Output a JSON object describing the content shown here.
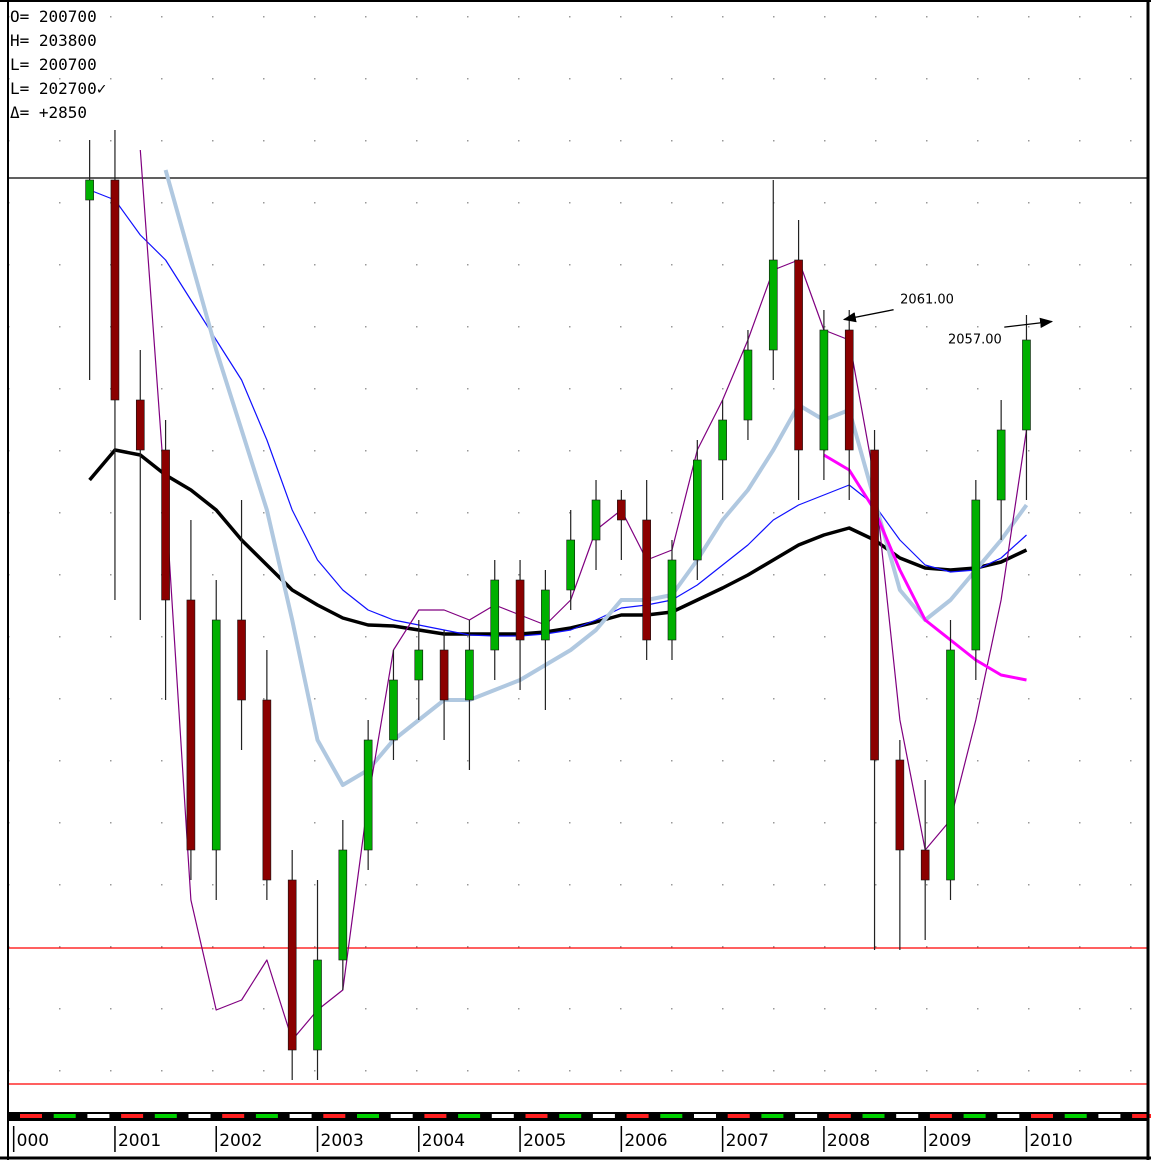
{
  "chart_data": {
    "type": "candlestick",
    "readout": [
      "O= 200700",
      "H= 203800",
      "L= 200700",
      "L= 202700✓",
      "Δ=   +2850"
    ],
    "xlim": [
      1999.944,
      2011.2
    ],
    "ylim": [
      480,
      2690
    ],
    "xticks": [
      {
        "value": 2000,
        "label": "000"
      },
      2001,
      2002,
      2003,
      2004,
      2005,
      2006,
      2007,
      2008,
      2009,
      2010
    ],
    "x": [
      2000.75,
      2001,
      2001.25,
      2001.5,
      2001.75,
      2002,
      2002.25,
      2002.5,
      2002.75,
      2003,
      2003.25,
      2003.5,
      2003.75,
      2004,
      2004.25,
      2004.5,
      2004.75,
      2005,
      2005.25,
      2005.5,
      2005.75,
      2006,
      2006.25,
      2006.5,
      2006.75,
      2007,
      2007.25,
      2007.5,
      2007.75,
      2008,
      2008.25,
      2008.5,
      2008.75,
      2009,
      2009.25,
      2009.5,
      2009.75,
      2010
    ],
    "open": [
      2300,
      2340,
      1900,
      1800,
      1500,
      1000,
      1460,
      1300,
      940,
      600,
      780,
      1000,
      1220,
      1340,
      1400,
      1300,
      1400,
      1540,
      1420,
      1520,
      1620,
      1700,
      1660,
      1420,
      1580,
      1780,
      1860,
      2000,
      2180,
      1800,
      2040,
      1800,
      1180,
      1000,
      940,
      1400,
      1700,
      1840
    ],
    "high": [
      2420,
      2440,
      2000,
      1860,
      1660,
      1540,
      1700,
      1400,
      1000,
      940,
      1060,
      1260,
      1400,
      1460,
      1440,
      1460,
      1580,
      1580,
      1560,
      1680,
      1740,
      1720,
      1740,
      1620,
      1820,
      1900,
      2040,
      2340,
      2260,
      2080,
      2080,
      1840,
      1220,
      1140,
      1460,
      1740,
      1900,
      2070
    ],
    "low": [
      1940,
      1500,
      1460,
      1300,
      940,
      900,
      1200,
      900,
      540,
      540,
      720,
      960,
      1180,
      1260,
      1220,
      1160,
      1340,
      1320,
      1280,
      1480,
      1560,
      1580,
      1380,
      1380,
      1540,
      1700,
      1820,
      1940,
      1700,
      1740,
      1700,
      800,
      800,
      820,
      900,
      1340,
      1620,
      1700
    ],
    "close": [
      2340,
      1900,
      1800,
      1500,
      1000,
      1460,
      1300,
      940,
      600,
      780,
      1000,
      1220,
      1340,
      1400,
      1300,
      1400,
      1540,
      1420,
      1520,
      1620,
      1700,
      1660,
      1420,
      1580,
      1780,
      1860,
      2000,
      2180,
      1800,
      2040,
      1800,
      1180,
      1000,
      940,
      1400,
      1700,
      1840,
      2020
    ],
    "up_color": "#00b000",
    "down_color": "#8b0000",
    "series": [
      {
        "color": "#000000",
        "width": 3.5,
        "values": [
          1740,
          1800,
          1790,
          1750,
          1720,
          1680,
          1620,
          1570,
          1520,
          1490,
          1464,
          1450,
          1448,
          1440,
          1432,
          1432,
          1432,
          1432,
          1436,
          1444,
          1456,
          1470,
          1470,
          1476,
          1500,
          1524,
          1550,
          1580,
          1610,
          1630,
          1644,
          1620,
          1584,
          1564,
          1560,
          1564,
          1576,
          1600
        ]
      },
      {
        "color": "#1010ff",
        "width": 1.2,
        "values": [
          2320,
          2300,
          2230,
          2180,
          2100,
          2020,
          1940,
          1820,
          1680,
          1580,
          1520,
          1480,
          1460,
          1450,
          1440,
          1430,
          1428,
          1428,
          1432,
          1440,
          1460,
          1484,
          1490,
          1500,
          1530,
          1570,
          1610,
          1660,
          1690,
          1710,
          1730,
          1690,
          1620,
          1570,
          1556,
          1560,
          1584,
          1630
        ]
      },
      {
        "color": "#b0c8e0",
        "width": 4,
        "values": [
          null,
          null,
          null,
          2360,
          2180,
          2000,
          1840,
          1680,
          1460,
          1220,
          1130,
          1160,
          1220,
          1260,
          1300,
          1300,
          1320,
          1340,
          1370,
          1400,
          1440,
          1500,
          1500,
          1510,
          1580,
          1660,
          1720,
          1800,
          1890,
          1860,
          1880,
          1700,
          1520,
          1460,
          1500,
          1560,
          1620,
          1690
        ]
      },
      {
        "color": "#800080",
        "width": 1.2,
        "values": [
          null,
          null,
          2400,
          1700,
          900,
          680,
          700,
          780,
          620,
          680,
          720,
          1100,
          1400,
          1480,
          1480,
          1460,
          1490,
          1470,
          1450,
          1500,
          1640,
          1680,
          1580,
          1600,
          1800,
          1900,
          2020,
          2160,
          2180,
          2040,
          2020,
          1740,
          1260,
          1000,
          1060,
          1260,
          1500,
          1840
        ]
      },
      {
        "color": "#ff00ff",
        "width": 3,
        "values": [
          null,
          null,
          null,
          null,
          null,
          null,
          null,
          null,
          null,
          null,
          null,
          null,
          null,
          null,
          null,
          null,
          null,
          null,
          null,
          null,
          null,
          null,
          null,
          null,
          null,
          null,
          null,
          null,
          null,
          1790,
          1760,
          1680,
          1560,
          1460,
          1420,
          1380,
          1350,
          1340
        ]
      }
    ],
    "hlines": [
      {
        "value": 2344,
        "color": "#000000"
      },
      {
        "value": 804,
        "color": "#ff0000"
      },
      {
        "value": 532,
        "color": "#ff0000"
      }
    ],
    "annotations": [
      {
        "x": 2008.2,
        "value": 2061,
        "label": "2061.00"
      },
      {
        "x": 2010.25,
        "value": 2057,
        "label": "2057.00"
      }
    ]
  }
}
